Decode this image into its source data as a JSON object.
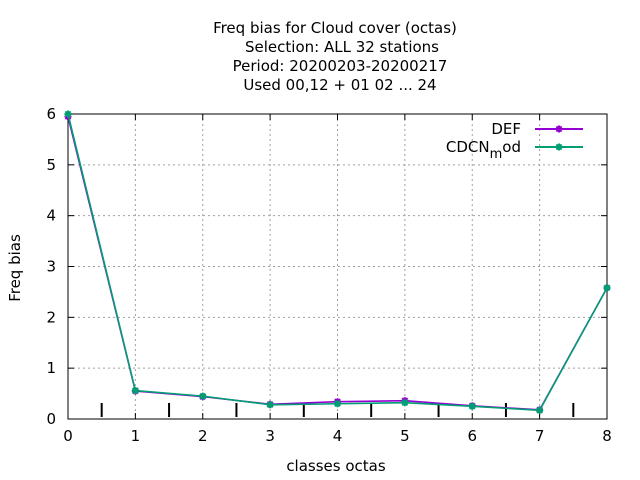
{
  "chart_data": {
    "type": "line",
    "title_lines": [
      "Freq bias  for Cloud cover (octas)",
      "Selection: ALL     32 stations",
      "Period: 20200203-20200217",
      "Used  00,12  + 01 02 ... 24"
    ],
    "xlabel": "classes octas",
    "ylabel": "Freq bias",
    "xlim": [
      0,
      8
    ],
    "ylim": [
      0,
      6
    ],
    "x_ticks": [
      0,
      1,
      2,
      3,
      4,
      5,
      6,
      7,
      8
    ],
    "y_ticks": [
      0,
      1,
      2,
      3,
      4,
      5,
      6
    ],
    "minor_x_ticks": [
      0.5,
      1.5,
      2.5,
      3.5,
      4.5,
      5.5,
      6.5,
      7.5
    ],
    "grid": true,
    "legend_position": "top-right",
    "x": [
      0,
      1,
      2,
      3,
      4,
      5,
      6,
      7,
      8
    ],
    "series": [
      {
        "name": "DEF",
        "name_parts": [
          "DEF",
          "",
          ""
        ],
        "color": "#9400d3",
        "values": [
          5.95,
          0.55,
          0.44,
          0.29,
          0.34,
          0.36,
          0.26,
          0.18,
          2.58
        ]
      },
      {
        "name": "CDCN_mod",
        "name_parts": [
          "CDCN",
          "m",
          "od"
        ],
        "color": "#009e73",
        "values": [
          6.0,
          0.56,
          0.45,
          0.28,
          0.3,
          0.32,
          0.25,
          0.17,
          2.58
        ]
      }
    ]
  }
}
